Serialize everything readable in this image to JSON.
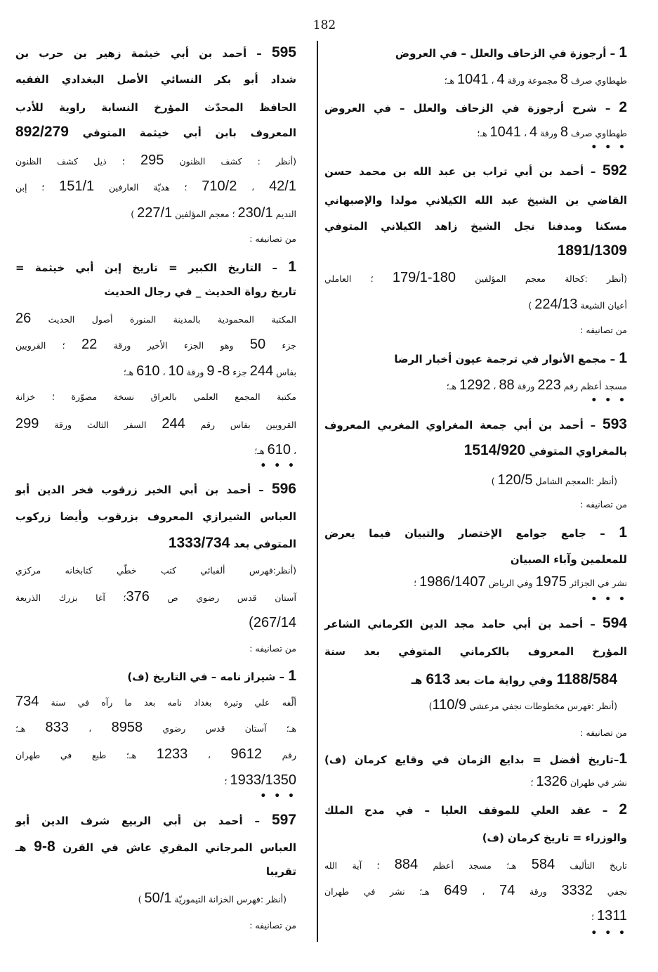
{
  "page_number": "182",
  "right_column": {
    "lines": [
      "1 – أرجوزة في الزحاف والعلل – في العروض",
      "طهطاوي صرف 8 مجموعة ورقة 4 ، 1041 هـ؛",
      "2 – شرح أرجوزة في الزحاف والعلل – في العروض",
      "طهطاوي صرف 8 ورقة 4 ، 1041 هـ؛",
      "• • •",
      "592 – أحمد بن أبي تراب بن عبد الله بن محمد حسن",
      "القاضي بن الشيخ عبد الله الكيلاني مولدا والإصبهاني",
      "مسكنا ومدفنا نجل الشيخ زاهد الكيلاني المتوفي",
      "1891/1309",
      "(أنظر :كحالة معجم المؤلفين 180-179/1 ؛ العاملي",
      "أعيان الشيعة 224/13 )",
      "من تصانيفه :",
      "1 – مجمع الأنوار في ترجمة عيون أخبار الرضا",
      "مسجد أعظم رقم 223 ورقة 88 ، 1292 هـ؛",
      "• • •",
      "593 – أحمد بن أبي جمعة المغراوي المغربي المعروف",
      "بالمغراوي المتوفي 1514/920",
      "(أنظر :المعجم الشامل 120/5 )",
      "من تصانيفه :",
      "1 – جامع جوامع الإختصار والتبيان فيما يعرض",
      "للمعلمين وآباء الصبيان",
      "نشر في الجزائر 1975 وفي الرياض 1986/1407 ؛",
      "• • •",
      "594 – أحمد بن أبي حامد مجد الدين الكرماني الشاعر",
      "المؤرخ المعروف بالكرماني المتوفي بعد سنة",
      "1188/584 وفي رواية مات بعد 613 هـ",
      "(أنظر :فهرس مخطوطات نجفي مرعشي 110/9)",
      "من تصانيفه :",
      "1–تاريخ أفضل = بدايع الزمان في وقايع كرمان (ف)",
      "نشر في طهران 1326 ؛",
      "2 – عقد العلي للموقف العليا – في مدح الملك",
      "والوزراء = تاريخ كرمان (ف)",
      "تاريخ التأليف 584 هـ؛ مسجد أعظم 884 ؛ آية الله",
      "نجفي 3332 ورقة 74 ، 649 هـ؛ نشر في طهران",
      "1311 ؛",
      "• • •"
    ]
  },
  "left_column": {
    "lines": [
      "595 – أحمد بن أبي خيثمة زهير بن حرب بن",
      "شداد أبو بكر النسائي الأصل البغدادي الفقيه",
      "الحافظ المحدّث المؤرخ النسابة راوية للأدب",
      "المعروف بابن أبي خيثمة المتوفي 892/279",
      "(أنظر : كشف الظنون 295 ؛ ذيل كشف الظنون",
      "42/1 ، 710/2 ؛ هديّة العارفين 151/1 ؛ إبن",
      "النديم 230/1 ؛ معجم المؤلفين 227/1 )",
      "من تصانيفه :",
      "1 – التاريخ الكبير = تاريخ إبن أبي خيثمة =",
      "تاريخ رواة الحديث _ في رجال الحديث",
      "المكتبة المحمودية بالمدينة المنورة أصول الحديث 26",
      "جزء 50 وهو الجزء الأخير ورقة 22 ؛ القرويين",
      "بفاس 244 جزء 8- 9 ورقة 10 ، 610 هـ؛",
      "مكتبة المجمع العلمي بالعراق نسخة مصوّرة ؛ خزانة",
      "القرويين بفاس رقم 244 السفر الثالث ورقة 299",
      "، 610 هـ؛",
      "• • •",
      "596 – أحمد بن أبي الخير زرقوب فخر الدين أبو",
      "العباس الشيرازي المعروف بزرقوب وأيضا زركوب",
      "المتوفي بعد 1333/734",
      "(أنظر:فهرس ألفبائي كتب خطّي كتابخانه مركزي",
      "آستان قدس رضوي ص 376؛ آغا بزرك الذريعة",
      "(267/14",
      "من تصانيفه :",
      "1 – شيراز نامه – في التاريخ (ف)",
      "ألّفه علي وتيرة بغداد نامه بعد ما رآه في سنة 734",
      "هـ؛ آستان قدس رضوي 8958 ، 833 هـ؛",
      "رقم 9612 ، 1233 هـ؛ طبع في طهران",
      "1933/1350 ؛",
      "• • •",
      "597 – أحمد بن أبي الربيع شرف الدين أبو",
      "العباس المرجاني المقري عاش في القرن 8-9 هـ",
      "تقريبا",
      "(أنظر :فهرس الخزانة التيموريّة 50/1 )",
      "من تصانيفه :"
    ]
  }
}
